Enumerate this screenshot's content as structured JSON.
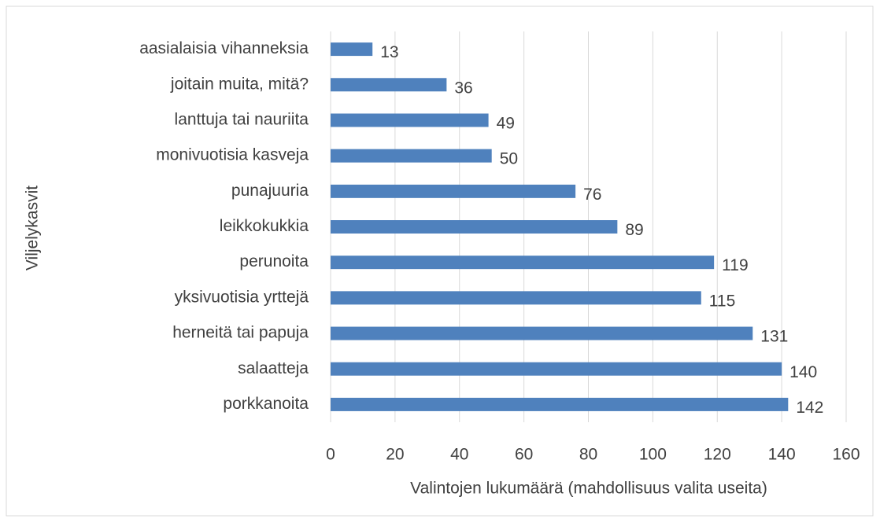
{
  "chart_data": {
    "type": "bar",
    "orientation": "horizontal",
    "ylabel": "Viljelykasvit",
    "xlabel": "Valintojen lukumäärä (mahdollisuus valita useita)",
    "categories": [
      "aasialaisia vihanneksia",
      "joitain muita, mitä?",
      "lanttuja tai nauriita",
      "monivuotisia kasveja",
      "punajuuria",
      "leikkokukkia",
      "perunoita",
      "yksivuotisia yrttejä",
      "herneitä tai papuja",
      "salaatteja",
      "porkkanoita"
    ],
    "values": [
      13,
      36,
      49,
      50,
      76,
      89,
      119,
      115,
      131,
      140,
      142
    ],
    "color": "#4f81bd",
    "xlim": [
      0,
      160
    ],
    "xticks": [
      0,
      20,
      40,
      60,
      80,
      100,
      120,
      140,
      160
    ],
    "grid": true
  }
}
